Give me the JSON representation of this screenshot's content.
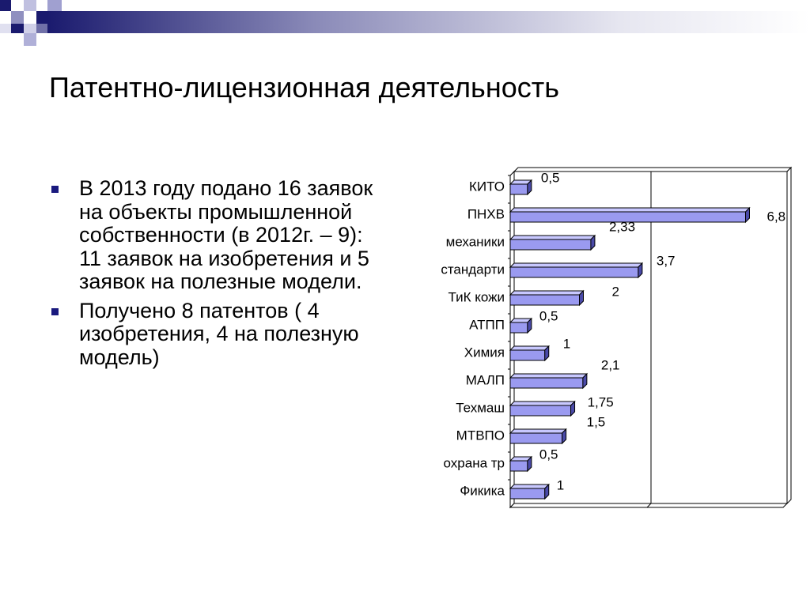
{
  "slide": {
    "title": "Патентно-лицензионная деятельность",
    "bullets": [
      "В 2013 году подано 16 заявок на объекты промышленной собственности (в 2012г. – 9): 11 заявок на изобретения и 5 заявок на полезные модели.",
      "Получено 8 патентов ( 4 изобретения, 4 на полезную модель)"
    ]
  },
  "colors": {
    "bar_fill": "#9a9af0",
    "bar_top": "#c8c8ff",
    "bar_side": "#4a4aa8",
    "bullet": "#1a1a7e",
    "header_gradient_start": "#1a1a6e"
  },
  "chart_data": {
    "type": "bar",
    "orientation": "horizontal",
    "categories": [
      "КИТО",
      "ПНХВ",
      "механики",
      "стандарти",
      "ТиК кожи",
      "АТПП",
      "Химия",
      "МАЛП",
      "Техмаш",
      "МТВПО",
      "охрана тр",
      "Фикика"
    ],
    "values": [
      0.5,
      6.8,
      2.33,
      3.7,
      2,
      0.5,
      1,
      2.1,
      1.75,
      1.5,
      0.5,
      1
    ],
    "value_labels": [
      "0,5",
      "6,8",
      "2,33",
      "3,7",
      "2",
      "0,5",
      "1",
      "2,1",
      "1,75",
      "1,5",
      "0,5",
      "1"
    ],
    "xlim": [
      0,
      8
    ],
    "grid": "single vertical line at midpoint",
    "legend": "none",
    "bar_style": "3d"
  }
}
